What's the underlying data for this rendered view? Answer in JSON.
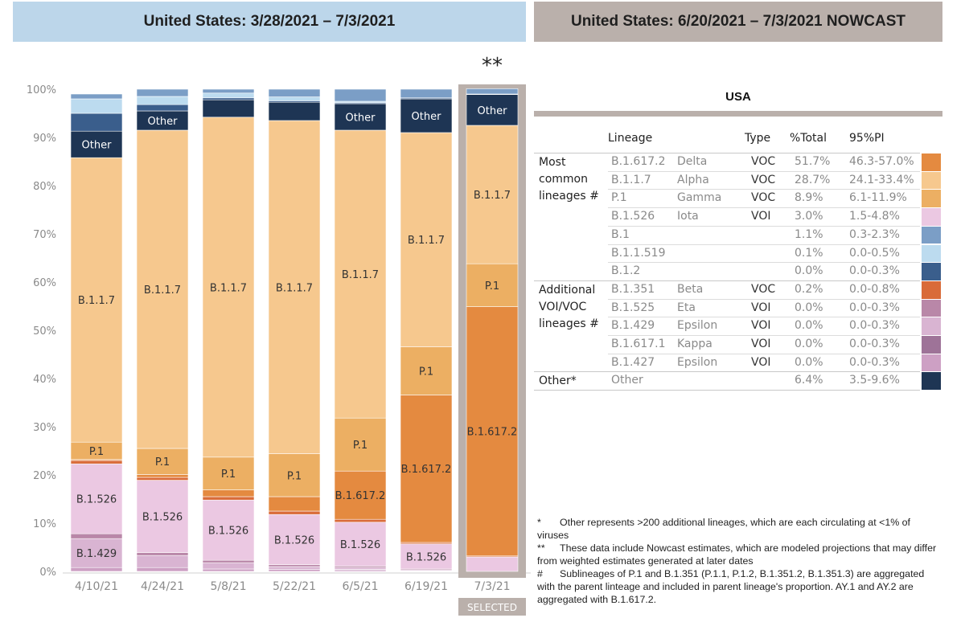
{
  "headers": {
    "left": "United States: 3/28/2021 – 7/3/2021",
    "right": "United States: 6/20/2021 – 7/3/2021 NOWCAST"
  },
  "nowcast_marker": "**",
  "selected_label": "SELECTED",
  "colors": {
    "B.1.617.2": "#e48a40",
    "B.1.1.7": "#f6c88e",
    "P.1": "#ecaf63",
    "B.1.526": "#ebc8e2",
    "B.1": "#7b9ec6",
    "B.1.1.519": "#bcdbef",
    "B.1.2": "#3a5e8c",
    "B.1.351": "#d96b39",
    "B.1.525": "#b987a8",
    "B.1.429": "#d9b4d2",
    "B.1.617.1": "#9e7398",
    "B.1.427": "#cda0c4",
    "Other": "#1e3554",
    "selected_frame": "#bab0ab"
  },
  "chart_data": {
    "type": "bar",
    "stacked": true,
    "ylim": [
      0,
      100
    ],
    "yticks": [
      "0%",
      "10%",
      "20%",
      "30%",
      "40%",
      "50%",
      "60%",
      "70%",
      "80%",
      "90%",
      "100%"
    ],
    "categories": [
      "4/10/21",
      "4/24/21",
      "5/8/21",
      "5/22/21",
      "6/5/21",
      "6/19/21",
      "7/3/21"
    ],
    "selected_index": 6,
    "series": [
      {
        "name": "B.1.427",
        "values": [
          0.8,
          0.8,
          0.5,
          0.4,
          0.3,
          0.1,
          0.0
        ]
      },
      {
        "name": "B.1.617.1",
        "values": [
          0.0,
          0.0,
          0.0,
          0.0,
          0.1,
          0.0,
          0.0
        ]
      },
      {
        "name": "B.1.429",
        "values": [
          6.0,
          2.5,
          1.3,
          0.6,
          0.4,
          0.2,
          0.0
        ]
      },
      {
        "name": "B.1.525",
        "values": [
          1.0,
          0.6,
          0.5,
          0.4,
          0.3,
          0.2,
          0.0
        ]
      },
      {
        "name": "B.1.526",
        "values": [
          14.5,
          15.0,
          12.5,
          10.4,
          9.1,
          5.2,
          3.0
        ]
      },
      {
        "name": "B.1.351",
        "values": [
          0.7,
          0.6,
          0.7,
          0.7,
          0.6,
          0.3,
          0.2
        ]
      },
      {
        "name": "B.1.617.2",
        "values": [
          0.2,
          0.6,
          1.4,
          3.0,
          10.0,
          30.6,
          51.7
        ]
      },
      {
        "name": "P.1",
        "values": [
          3.6,
          5.4,
          6.8,
          8.9,
          11.0,
          10.0,
          8.9
        ]
      },
      {
        "name": "B.1.1.7",
        "values": [
          59.0,
          66.0,
          70.5,
          69.1,
          59.7,
          44.4,
          28.7
        ]
      },
      {
        "name": "Other",
        "values": [
          5.5,
          4.0,
          3.6,
          3.8,
          5.5,
          7.0,
          6.4
        ]
      },
      {
        "name": "B.1.2",
        "values": [
          3.7,
          1.3,
          0.4,
          0.3,
          0.2,
          0.2,
          0.0
        ]
      },
      {
        "name": "B.1.1.519",
        "values": [
          3.0,
          1.7,
          1.0,
          0.8,
          0.3,
          0.0,
          0.1
        ]
      },
      {
        "name": "B.1",
        "values": [
          1.0,
          1.5,
          0.8,
          1.6,
          2.5,
          1.8,
          1.1
        ]
      }
    ],
    "segment_labels": [
      {
        "bar": 0,
        "series": "B.1.429",
        "text": "B.1.429"
      },
      {
        "bar": 0,
        "series": "B.1.526",
        "text": "B.1.526"
      },
      {
        "bar": 0,
        "series": "P.1",
        "text": "P.1"
      },
      {
        "bar": 0,
        "series": "B.1.1.7",
        "text": "B.1.1.7"
      },
      {
        "bar": 0,
        "series": "Other",
        "text": "Other"
      },
      {
        "bar": 1,
        "series": "B.1.526",
        "text": "B.1.526"
      },
      {
        "bar": 1,
        "series": "P.1",
        "text": "P.1"
      },
      {
        "bar": 1,
        "series": "B.1.1.7",
        "text": "B.1.1.7"
      },
      {
        "bar": 1,
        "series": "Other",
        "text": "Other"
      },
      {
        "bar": 2,
        "series": "B.1.526",
        "text": "B.1.526"
      },
      {
        "bar": 2,
        "series": "P.1",
        "text": "P.1"
      },
      {
        "bar": 2,
        "series": "B.1.1.7",
        "text": "B.1.1.7"
      },
      {
        "bar": 3,
        "series": "B.1.526",
        "text": "B.1.526"
      },
      {
        "bar": 3,
        "series": "P.1",
        "text": "P.1"
      },
      {
        "bar": 3,
        "series": "B.1.1.7",
        "text": "B.1.1.7"
      },
      {
        "bar": 4,
        "series": "B.1.526",
        "text": "B.1.526"
      },
      {
        "bar": 4,
        "series": "B.1.617.2",
        "text": "B.1.617.2"
      },
      {
        "bar": 4,
        "series": "P.1",
        "text": "P.1"
      },
      {
        "bar": 4,
        "series": "B.1.1.7",
        "text": "B.1.1.7"
      },
      {
        "bar": 4,
        "series": "Other",
        "text": "Other"
      },
      {
        "bar": 5,
        "series": "B.1.526",
        "text": "B.1.526"
      },
      {
        "bar": 5,
        "series": "B.1.617.2",
        "text": "B.1.617.2"
      },
      {
        "bar": 5,
        "series": "P.1",
        "text": "P.1"
      },
      {
        "bar": 5,
        "series": "B.1.1.7",
        "text": "B.1.1.7"
      },
      {
        "bar": 5,
        "series": "Other",
        "text": "Other"
      },
      {
        "bar": 6,
        "series": "B.1.617.2",
        "text": "B.1.617.2"
      },
      {
        "bar": 6,
        "series": "P.1",
        "text": "P.1"
      },
      {
        "bar": 6,
        "series": "B.1.1.7",
        "text": "B.1.1.7"
      },
      {
        "bar": 6,
        "series": "Other",
        "text": "Other"
      }
    ]
  },
  "table": {
    "title": "USA",
    "columns": {
      "lineage": "Lineage",
      "type": "Type",
      "total": "%Total",
      "pi": "95%PI"
    },
    "groups": [
      {
        "label": "Most common lineages #",
        "rows": [
          {
            "lineage": "B.1.617.2",
            "name": "Delta",
            "type": "VOC",
            "total": "51.7%",
            "pi": "46.3-57.0%",
            "color": "#e48a40"
          },
          {
            "lineage": "B.1.1.7",
            "name": "Alpha",
            "type": "VOC",
            "total": "28.7%",
            "pi": "24.1-33.4%",
            "color": "#f6c88e"
          },
          {
            "lineage": "P.1",
            "name": "Gamma",
            "type": "VOC",
            "total": "8.9%",
            "pi": "6.1-11.9%",
            "color": "#ecaf63"
          },
          {
            "lineage": "B.1.526",
            "name": "Iota",
            "type": "VOI",
            "total": "3.0%",
            "pi": "1.5-4.8%",
            "color": "#ebc8e2"
          },
          {
            "lineage": "B.1",
            "name": "",
            "type": "",
            "total": "1.1%",
            "pi": "0.3-2.3%",
            "color": "#7b9ec6"
          },
          {
            "lineage": "B.1.1.519",
            "name": "",
            "type": "",
            "total": "0.1%",
            "pi": "0.0-0.5%",
            "color": "#bcdbef"
          },
          {
            "lineage": "B.1.2",
            "name": "",
            "type": "",
            "total": "0.0%",
            "pi": "0.0-0.3%",
            "color": "#3a5e8c"
          }
        ]
      },
      {
        "label": "Additional VOI/VOC lineages #",
        "rows": [
          {
            "lineage": "B.1.351",
            "name": "Beta",
            "type": "VOC",
            "total": "0.2%",
            "pi": "0.0-0.8%",
            "color": "#d96b39"
          },
          {
            "lineage": "B.1.525",
            "name": "Eta",
            "type": "VOI",
            "total": "0.0%",
            "pi": "0.0-0.3%",
            "color": "#b987a8"
          },
          {
            "lineage": "B.1.429",
            "name": "Epsilon",
            "type": "VOI",
            "total": "0.0%",
            "pi": "0.0-0.3%",
            "color": "#d9b4d2"
          },
          {
            "lineage": "B.1.617.1",
            "name": "Kappa",
            "type": "VOI",
            "total": "0.0%",
            "pi": "0.0-0.3%",
            "color": "#9e7398"
          },
          {
            "lineage": "B.1.427",
            "name": "Epsilon",
            "type": "VOI",
            "total": "0.0%",
            "pi": "0.0-0.3%",
            "color": "#cda0c4"
          }
        ]
      },
      {
        "label": "Other*",
        "rows": [
          {
            "lineage": "Other",
            "name": "",
            "type": "",
            "total": "6.4%",
            "pi": "3.5-9.6%",
            "color": "#1e3554"
          }
        ]
      }
    ]
  },
  "footnotes": [
    {
      "mark": "*",
      "text": "Other represents >200 additional lineages, which are each circulating at <1% of viruses"
    },
    {
      "mark": "**",
      "text": "These data include Nowcast estimates, which are modeled projections that may differ from weighted estimates generated at later dates"
    },
    {
      "mark": "#",
      "text": "Sublineages of P.1 and B.1.351 (P.1.1,  P.1.2, B.1.351.2, B.1.351.3) are aggregated with the parent linteage and included in parent lineage's proportion. AY.1 and AY.2 are aggregated with B.1.617.2."
    }
  ]
}
